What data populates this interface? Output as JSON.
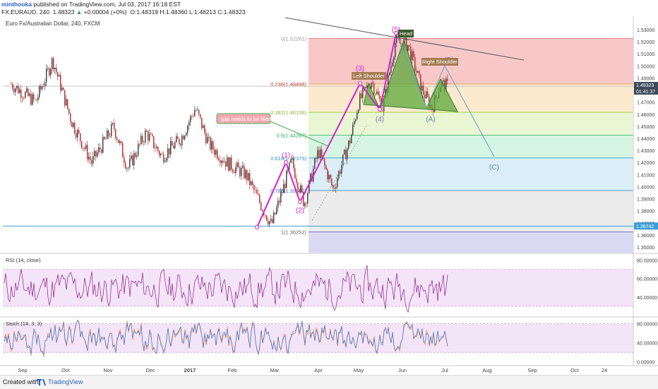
{
  "header": {
    "user": "minthooka",
    "published": "published on TradingView.com, Jul 03, 2017 16:18 EST",
    "symbol_line": "FX:EURAUD, 240",
    "last": "1.48323",
    "change": "+0.00004 (+0%)",
    "ohlc": "O:1.48319 H:1.48360 L:1.48213 C:1.48323"
  },
  "footer": {
    "created_with": "Created with",
    "brand": "TradingView"
  },
  "colors": {
    "candle_up": "#3a3a3a",
    "candle_down": "#b52b2b",
    "elliott": "#d61fd0",
    "trendline": "#555555",
    "fib_0": "#f5b5b5",
    "fib_236": "#fbe3bf",
    "fib_382": "#e0f3c4",
    "fib_5": "#c8f0d8",
    "fib_618": "#cfe8f6",
    "fib_786": "#e6e6e6",
    "fib_1": "#cfcdf0",
    "pattern_fill": "#5ea83b",
    "indicator_band": "#efd9f5",
    "indicator_line": "#8b1f8b",
    "stoch_d": "#e67e22"
  },
  "chart_data": [
    {
      "type": "line",
      "title": "Euro Fx/Australian Dollar, 240, FXCM",
      "x_ticks": [
        "Sep",
        "Oct",
        "Nov",
        "Dec",
        "2017",
        "Feb",
        "Mar",
        "Apr",
        "May",
        "Jun",
        "Jul",
        "Aug",
        "Sep",
        "Oct",
        "24"
      ],
      "y_ticks": [
        1.53,
        1.52,
        1.51,
        1.5,
        1.49,
        1.48,
        1.47,
        1.46,
        1.45,
        1.44,
        1.43,
        1.42,
        1.41,
        1.4,
        1.39,
        1.38,
        1.37,
        1.36,
        1.35
      ],
      "ylim": [
        1.345,
        1.535
      ],
      "price_key_points": [
        {
          "x": "2016-08-24",
          "y": 1.485
        },
        {
          "x": "2016-09-10",
          "y": 1.47
        },
        {
          "x": "2016-09-22",
          "y": 1.505
        },
        {
          "x": "2016-10-05",
          "y": 1.455
        },
        {
          "x": "2016-10-20",
          "y": 1.42
        },
        {
          "x": "2016-11-05",
          "y": 1.45
        },
        {
          "x": "2016-11-15",
          "y": 1.415
        },
        {
          "x": "2016-11-28",
          "y": 1.445
        },
        {
          "x": "2016-12-10",
          "y": 1.425
        },
        {
          "x": "2016-12-25",
          "y": 1.44
        },
        {
          "x": "2017-01-05",
          "y": 1.465
        },
        {
          "x": "2017-01-15",
          "y": 1.435
        },
        {
          "x": "2017-01-28",
          "y": 1.42
        },
        {
          "x": "2017-02-10",
          "y": 1.41
        },
        {
          "x": "2017-02-20",
          "y": 1.385
        },
        {
          "x": "2017-02-27",
          "y": 1.368
        },
        {
          "x": "2017-03-13",
          "y": 1.421
        },
        {
          "x": "2017-03-22",
          "y": 1.386
        },
        {
          "x": "2017-04-01",
          "y": 1.43
        },
        {
          "x": "2017-04-12",
          "y": 1.398
        },
        {
          "x": "2017-04-25",
          "y": 1.44
        },
        {
          "x": "2017-05-01",
          "y": 1.47
        },
        {
          "x": "2017-05-10",
          "y": 1.488
        },
        {
          "x": "2017-05-18",
          "y": 1.465
        },
        {
          "x": "2017-05-27",
          "y": 1.52
        },
        {
          "x": "2017-06-05",
          "y": 1.517
        },
        {
          "x": "2017-06-15",
          "y": 1.48
        },
        {
          "x": "2017-06-22",
          "y": 1.465
        },
        {
          "x": "2017-06-28",
          "y": 1.485
        },
        {
          "x": "2017-07-03",
          "y": 1.48323
        }
      ],
      "current_price": {
        "value": 1.48323,
        "label": "1.48323",
        "countdown": "01:41:37"
      },
      "support_level": {
        "value": 1.36742,
        "label": "1.36742"
      },
      "fibonacci": [
        {
          "ratio": "0",
          "price": 1.52281,
          "label": "0(1.52281)"
        },
        {
          "ratio": "0.236",
          "price": 1.48498,
          "label": "0.236(1.48498)"
        },
        {
          "ratio": "0.382",
          "price": 1.46158,
          "label": "0.382(1.46158)"
        },
        {
          "ratio": "0.5",
          "price": 1.44267,
          "label": "0.5(1.44267)"
        },
        {
          "ratio": "0.618",
          "price": 1.42375,
          "label": "0.618(1.42375)"
        },
        {
          "ratio": "0.786",
          "price": 1.39682,
          "label": "0.786(1.39682)"
        },
        {
          "ratio": "1",
          "price": 1.36252,
          "label": "1(1.36252)"
        }
      ],
      "elliott_waves": [
        {
          "label": "(1)",
          "x": "2017-03-13",
          "y": 1.421
        },
        {
          "label": "(2)",
          "x": "2017-03-22",
          "y": 1.386
        },
        {
          "label": "(3)",
          "x": "2017-05-10",
          "y": 1.488
        },
        {
          "label": "(4)",
          "x": "2017-05-18",
          "y": 1.465
        },
        {
          "label": "(5)",
          "x": "2017-06-01",
          "y": 1.52
        },
        {
          "label": "(A)",
          "x": "2017-06-22",
          "y": 1.465
        },
        {
          "label": "(B)",
          "x": "2017-06-30",
          "y": 1.497
        },
        {
          "label": "(C)",
          "x": "2017-07-30",
          "y": 1.42
        }
      ],
      "annotations": {
        "note": "gap needs to be filled",
        "left_shoulder": "Left Shoulder",
        "head": "Head",
        "right_shoulder": "Right Shoulder"
      }
    },
    {
      "type": "line",
      "title": "RSI (14, close)",
      "ylim": [
        20,
        85
      ],
      "y_ticks": [
        80,
        60,
        40
      ],
      "bands": [
        30,
        70
      ]
    },
    {
      "type": "line",
      "title": "Stoch (14, 3, 3)",
      "ylim": [
        -5,
        90
      ],
      "y_ticks": [
        80,
        40,
        0
      ],
      "bands": [
        20,
        80
      ]
    }
  ]
}
